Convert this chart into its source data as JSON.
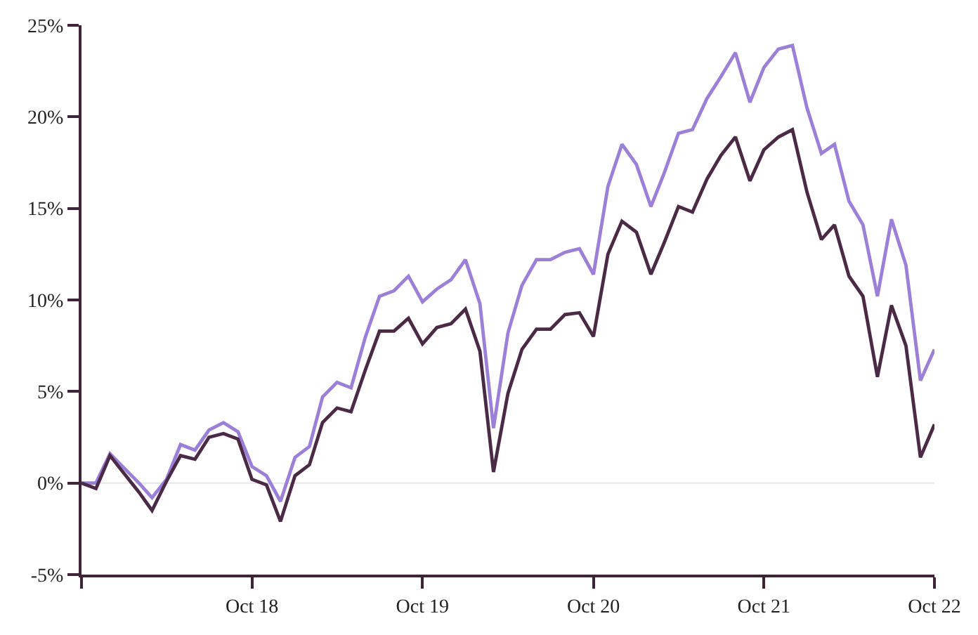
{
  "chart_data": {
    "type": "line",
    "x": [
      "2017-10",
      "2017-11",
      "2017-12",
      "2018-01",
      "2018-02",
      "2018-03",
      "2018-04",
      "2018-05",
      "2018-06",
      "2018-07",
      "2018-08",
      "2018-09",
      "2018-10",
      "2018-11",
      "2018-12",
      "2019-01",
      "2019-02",
      "2019-03",
      "2019-04",
      "2019-05",
      "2019-06",
      "2019-07",
      "2019-08",
      "2019-09",
      "2019-10",
      "2019-11",
      "2019-12",
      "2020-01",
      "2020-02",
      "2020-03",
      "2020-04",
      "2020-05",
      "2020-06",
      "2020-07",
      "2020-08",
      "2020-09",
      "2020-10",
      "2020-11",
      "2020-12",
      "2021-01",
      "2021-02",
      "2021-03",
      "2021-04",
      "2021-05",
      "2021-06",
      "2021-07",
      "2021-08",
      "2021-09",
      "2021-10",
      "2021-11",
      "2021-12",
      "2022-01",
      "2022-02",
      "2022-03",
      "2022-04",
      "2022-05",
      "2022-06",
      "2022-07",
      "2022-08",
      "2022-09",
      "2022-10"
    ],
    "series": [
      {
        "color": "#9b7fd8",
        "values": [
          0,
          0,
          1.6,
          0.8,
          0,
          -0.8,
          0.2,
          2.1,
          1.8,
          2.9,
          3.3,
          2.8,
          0.9,
          0.4,
          -1.0,
          1.4,
          2.0,
          4.7,
          5.5,
          5.2,
          8.0,
          10.2,
          10.5,
          11.3,
          9.9,
          10.6,
          11.1,
          12.2,
          9.8,
          3.0,
          8.2,
          10.8,
          12.2,
          12.2,
          12.6,
          12.8,
          11.4,
          16.2,
          18.5,
          17.4,
          15.1,
          16.9,
          19.1,
          19.3,
          21.0,
          22.2,
          23.5,
          20.8,
          22.7,
          23.7,
          23.9,
          20.5,
          18.0,
          18.5,
          15.4,
          14.1,
          10.2,
          14.4,
          11.9,
          5.6,
          7.3
        ]
      },
      {
        "color": "#4a2a45",
        "values": [
          0,
          -0.3,
          1.5,
          0.5,
          -0.5,
          -1.5,
          0.1,
          1.5,
          1.3,
          2.5,
          2.7,
          2.4,
          0.2,
          -0.1,
          -2.1,
          0.4,
          1.0,
          3.3,
          4.1,
          3.9,
          6.2,
          8.3,
          8.3,
          9.0,
          7.6,
          8.5,
          8.7,
          9.5,
          7.2,
          0.6,
          4.9,
          7.3,
          8.4,
          8.4,
          9.2,
          9.3,
          8.0,
          12.5,
          14.3,
          13.7,
          11.4,
          13.1,
          15.1,
          14.8,
          16.6,
          17.9,
          18.9,
          16.5,
          18.2,
          18.9,
          19.3,
          15.9,
          13.3,
          14.1,
          11.3,
          10.2,
          5.8,
          9.7,
          7.5,
          1.4,
          3.2
        ]
      }
    ],
    "xlim": [
      "2017-10",
      "2022-10"
    ],
    "xticks": [
      {
        "value": "2017-10",
        "label": null
      },
      {
        "value": "2018-10",
        "label": "Oct 18"
      },
      {
        "value": "2019-10",
        "label": "Oct 19"
      },
      {
        "value": "2020-10",
        "label": "Oct 20"
      },
      {
        "value": "2021-10",
        "label": "Oct 21"
      },
      {
        "value": "2022-10",
        "label": "Oct 22"
      }
    ],
    "ylim": [
      -5,
      25
    ],
    "yticks": [
      {
        "value": -5,
        "label": "-5%"
      },
      {
        "value": 0,
        "label": "0%"
      },
      {
        "value": 5,
        "label": "5%"
      },
      {
        "value": 10,
        "label": "10%"
      },
      {
        "value": 15,
        "label": "15%"
      },
      {
        "value": 20,
        "label": "20%"
      },
      {
        "value": 25,
        "label": "25%"
      }
    ],
    "ref_lines": [
      {
        "axis": "y",
        "value": 0,
        "color": "#e6e6e6"
      }
    ],
    "grid": false,
    "marker": "none",
    "line_style": "solid"
  }
}
